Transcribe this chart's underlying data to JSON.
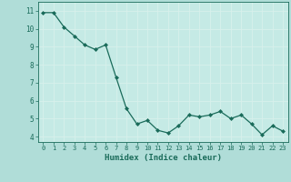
{
  "x": [
    0,
    1,
    2,
    3,
    4,
    5,
    6,
    7,
    8,
    9,
    10,
    11,
    12,
    13,
    14,
    15,
    16,
    17,
    18,
    19,
    20,
    21,
    22,
    23
  ],
  "y": [
    10.9,
    10.9,
    10.1,
    9.6,
    9.1,
    8.85,
    9.1,
    7.3,
    5.55,
    4.7,
    4.9,
    4.35,
    4.2,
    4.6,
    5.2,
    5.1,
    5.2,
    5.4,
    5.0,
    5.2,
    4.7,
    4.1,
    4.6,
    4.3
  ],
  "xlabel": "Humidex (Indice chaleur)",
  "ylim": [
    3.7,
    11.5
  ],
  "xlim": [
    -0.5,
    23.5
  ],
  "yticks": [
    4,
    5,
    6,
    7,
    8,
    9,
    10,
    11
  ],
  "xticks": [
    0,
    1,
    2,
    3,
    4,
    5,
    6,
    7,
    8,
    9,
    10,
    11,
    12,
    13,
    14,
    15,
    16,
    17,
    18,
    19,
    20,
    21,
    22,
    23
  ],
  "line_color": "#1a6b5a",
  "marker": "D",
  "marker_size": 2.0,
  "bg_color": "#b0ddd8",
  "grid_color": "#d8f0ec",
  "axes_bg": "#c5eae5",
  "tick_label_color": "#1a6b5a",
  "xlabel_color": "#1a6b5a"
}
